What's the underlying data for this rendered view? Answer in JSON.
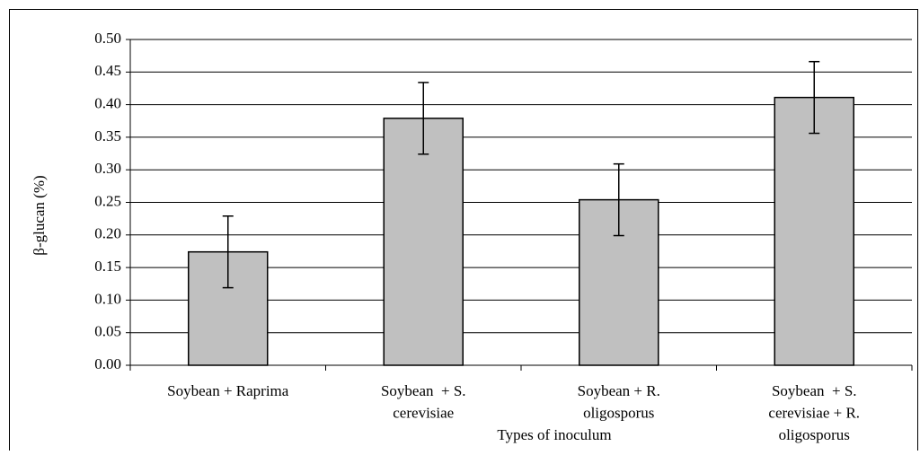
{
  "chart_data": {
    "type": "bar",
    "y_label": "β-glucan (%)",
    "x_label": "Types of inoculum",
    "categories": [
      [
        "Soybean + Raprima"
      ],
      [
        "Soybean  + S.",
        "cerevisiae"
      ],
      [
        "Soybean + R.",
        "oligosporus"
      ],
      [
        "Soybean  + S.",
        "cerevisiae + R.",
        "oligosporus"
      ]
    ],
    "values": [
      0.174,
      0.379,
      0.254,
      0.411
    ],
    "errors": [
      0.055,
      0.055,
      0.055,
      0.055
    ],
    "color": "#c0c0c0",
    "ylim": [
      0,
      0.5
    ],
    "yticks": [
      {
        "value": 0,
        "label": "0.00"
      },
      {
        "value": 0.05,
        "label": "0.05"
      },
      {
        "value": 0.1,
        "label": "0.10"
      },
      {
        "value": 0.15,
        "label": "0.15"
      },
      {
        "value": 0.2,
        "label": "0.20"
      },
      {
        "value": 0.25,
        "label": "0.25"
      },
      {
        "value": 0.3,
        "label": "0.30"
      },
      {
        "value": 0.35,
        "label": "0.35"
      },
      {
        "value": 0.4,
        "label": "0.40"
      },
      {
        "value": 0.45,
        "label": "0.45"
      },
      {
        "value": 0.5,
        "label": "0.50"
      }
    ],
    "grid": true
  }
}
